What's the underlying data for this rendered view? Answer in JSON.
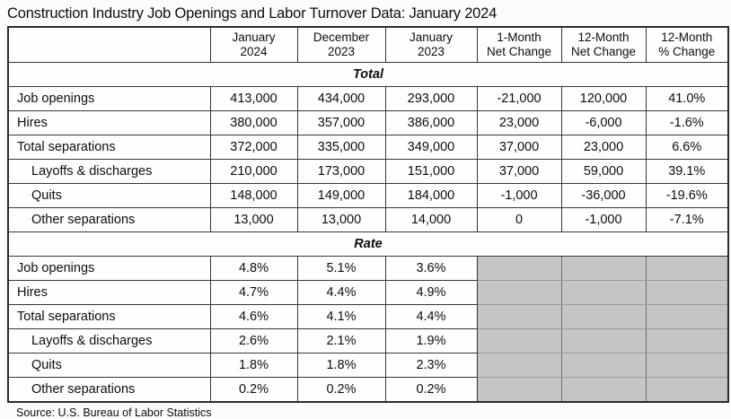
{
  "title": "Construction Industry Job Openings and Labor Turnover Data: January 2024",
  "source": "Source: U.S. Bureau of Labor Statistics",
  "colors": {
    "grayed_cell": "#c5c5c5",
    "table_border": "#373737",
    "background": "#fcfcfc",
    "text": "#0d0d0d"
  },
  "chart_data": {
    "type": "table",
    "title": "Construction Industry Job Openings and Labor Turnover Data: January 2024",
    "source": "Source: U.S. Bureau of Labor Statistics",
    "columns": [
      {
        "top": "",
        "bottom": ""
      },
      {
        "top": "January",
        "bottom": "2024"
      },
      {
        "top": "December",
        "bottom": "2023"
      },
      {
        "top": "January",
        "bottom": "2023"
      },
      {
        "top": "1-Month",
        "bottom": "Net Change"
      },
      {
        "top": "12-Month",
        "bottom": "Net Change"
      },
      {
        "top": "12-Month",
        "bottom": "% Change"
      }
    ],
    "sections": [
      {
        "label": "Total",
        "rows": [
          {
            "label": "Job openings",
            "indent": false,
            "values": [
              "413,000",
              "434,000",
              "293,000",
              "-21,000",
              "120,000",
              "41.0%"
            ]
          },
          {
            "label": "Hires",
            "indent": false,
            "values": [
              "380,000",
              "357,000",
              "386,000",
              "23,000",
              "-6,000",
              "-1.6%"
            ]
          },
          {
            "label": "Total separations",
            "indent": false,
            "values": [
              "372,000",
              "335,000",
              "349,000",
              "37,000",
              "23,000",
              "6.6%"
            ]
          },
          {
            "label": "Layoffs & discharges",
            "indent": true,
            "values": [
              "210,000",
              "173,000",
              "151,000",
              "37,000",
              "59,000",
              "39.1%"
            ]
          },
          {
            "label": "Quits",
            "indent": true,
            "values": [
              "148,000",
              "149,000",
              "184,000",
              "-1,000",
              "-36,000",
              "-19.6%"
            ]
          },
          {
            "label": "Other separations",
            "indent": true,
            "values": [
              "13,000",
              "13,000",
              "14,000",
              "0",
              "-1,000",
              "-7.1%"
            ]
          }
        ]
      },
      {
        "label": "Rate",
        "rows": [
          {
            "label": "Job openings",
            "indent": false,
            "values": [
              "4.8%",
              "5.1%",
              "3.6%",
              null,
              null,
              null
            ]
          },
          {
            "label": "Hires",
            "indent": false,
            "values": [
              "4.7%",
              "4.4%",
              "4.9%",
              null,
              null,
              null
            ]
          },
          {
            "label": "Total separations",
            "indent": false,
            "values": [
              "4.6%",
              "4.1%",
              "4.4%",
              null,
              null,
              null
            ]
          },
          {
            "label": "Layoffs & discharges",
            "indent": true,
            "values": [
              "2.6%",
              "2.1%",
              "1.9%",
              null,
              null,
              null
            ]
          },
          {
            "label": "Quits",
            "indent": true,
            "values": [
              "1.8%",
              "1.8%",
              "2.3%",
              null,
              null,
              null
            ]
          },
          {
            "label": "Other separations",
            "indent": true,
            "values": [
              "0.2%",
              "0.2%",
              "0.2%",
              null,
              null,
              null
            ]
          }
        ]
      }
    ]
  }
}
